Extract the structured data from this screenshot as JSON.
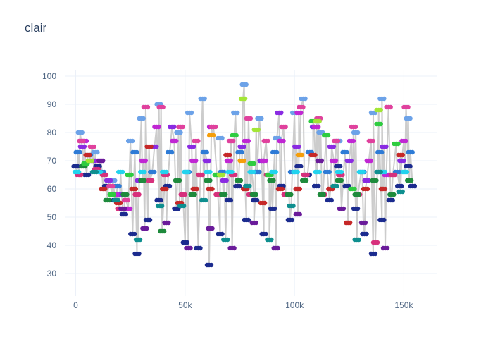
{
  "chart_data": {
    "type": "scatter",
    "title": "clair",
    "xlabel": "",
    "ylabel": "",
    "xlim": [
      -5000,
      165000
    ],
    "ylim": [
      22,
      102
    ],
    "grid": true,
    "legend": "none",
    "x_ticks": [
      0,
      50000,
      100000,
      150000
    ],
    "x_tick_labels": [
      "0",
      "50k",
      "100k",
      "150k"
    ],
    "y_ticks": [
      30,
      40,
      50,
      60,
      70,
      80,
      90,
      100
    ],
    "y_tick_labels": [
      "30",
      "40",
      "50",
      "60",
      "70",
      "80",
      "90",
      "100"
    ],
    "connector_color": "#cccccc",
    "marker_colors": [
      "#1b2b8e",
      "#2e7bd6",
      "#6ca2e8",
      "#8a2be2",
      "#c026d3",
      "#e0419d",
      "#d7307c",
      "#c62828",
      "#1e8a3c",
      "#2ecc40",
      "#a3e635",
      "#22d3ee",
      "#0e8f8f",
      "#6a1b9a",
      "#f59e0b"
    ],
    "series": [
      {
        "name": "",
        "color": "#1b2b8e",
        "points": [
          [
            0,
            68
          ],
          [
            5000,
            65
          ],
          [
            10000,
            68
          ],
          [
            14000,
            61
          ],
          [
            18000,
            56
          ],
          [
            22000,
            51
          ],
          [
            26000,
            44
          ],
          [
            28000,
            37
          ],
          [
            33000,
            49
          ],
          [
            38000,
            56
          ],
          [
            42000,
            61
          ],
          [
            46000,
            53
          ],
          [
            50000,
            41
          ],
          [
            56000,
            39
          ],
          [
            61000,
            33
          ],
          [
            66000,
            44
          ],
          [
            70000,
            56
          ],
          [
            74000,
            61
          ],
          [
            78000,
            49
          ],
          [
            82000,
            56
          ],
          [
            86000,
            44
          ],
          [
            90000,
            53
          ],
          [
            94000,
            61
          ],
          [
            98000,
            49
          ],
          [
            102000,
            68
          ],
          [
            106000,
            65
          ],
          [
            110000,
            61
          ],
          [
            116000,
            56
          ],
          [
            120000,
            68
          ],
          [
            124000,
            61
          ],
          [
            128000,
            53
          ],
          [
            132000,
            44
          ],
          [
            136000,
            37
          ],
          [
            140000,
            49
          ],
          [
            144000,
            56
          ],
          [
            148000,
            61
          ],
          [
            152000,
            68
          ],
          [
            154000,
            61
          ]
        ]
      },
      {
        "name": "",
        "color": "#2e7bd6",
        "points": [
          [
            1000,
            73
          ],
          [
            6000,
            72
          ],
          [
            12000,
            66
          ],
          [
            19000,
            61
          ],
          [
            27000,
            73
          ],
          [
            35000,
            66
          ],
          [
            43000,
            73
          ],
          [
            51000,
            66
          ],
          [
            59000,
            73
          ],
          [
            67000,
            66
          ],
          [
            75000,
            73
          ],
          [
            83000,
            66
          ],
          [
            91000,
            73
          ],
          [
            99000,
            66
          ],
          [
            107000,
            73
          ],
          [
            115000,
            66
          ],
          [
            123000,
            73
          ],
          [
            131000,
            66
          ],
          [
            139000,
            73
          ],
          [
            147000,
            66
          ],
          [
            153000,
            73
          ]
        ]
      },
      {
        "name": "",
        "color": "#6ca2e8",
        "points": [
          [
            2000,
            80
          ],
          [
            9000,
            73
          ],
          [
            17000,
            63
          ],
          [
            25000,
            77
          ],
          [
            30000,
            85
          ],
          [
            38000,
            90
          ],
          [
            47000,
            80
          ],
          [
            52000,
            87
          ],
          [
            58000,
            92
          ],
          [
            66000,
            78
          ],
          [
            73000,
            87
          ],
          [
            77000,
            97
          ],
          [
            84000,
            85
          ],
          [
            92000,
            78
          ],
          [
            100000,
            87
          ],
          [
            104000,
            92
          ],
          [
            112000,
            80
          ],
          [
            120000,
            77
          ],
          [
            128000,
            80
          ],
          [
            136000,
            87
          ],
          [
            140000,
            92
          ],
          [
            152000,
            85
          ]
        ]
      },
      {
        "name": "",
        "color": "#8a2be2",
        "points": [
          [
            3000,
            75
          ],
          [
            8000,
            70
          ],
          [
            15000,
            63
          ],
          [
            21000,
            58
          ],
          [
            29000,
            63
          ],
          [
            36000,
            75
          ],
          [
            44000,
            82
          ],
          [
            53000,
            75
          ],
          [
            60000,
            70
          ],
          [
            68000,
            63
          ],
          [
            76000,
            75
          ],
          [
            85000,
            70
          ],
          [
            93000,
            87
          ],
          [
            101000,
            75
          ],
          [
            109000,
            82
          ],
          [
            117000,
            75
          ],
          [
            125000,
            70
          ],
          [
            133000,
            63
          ],
          [
            141000,
            75
          ],
          [
            149000,
            70
          ]
        ]
      },
      {
        "name": "",
        "color": "#c026d3",
        "points": [
          [
            4000,
            77
          ],
          [
            11000,
            70
          ],
          [
            18000,
            58
          ],
          [
            24000,
            53
          ],
          [
            31000,
            70
          ],
          [
            37000,
            82
          ],
          [
            45000,
            77
          ],
          [
            54000,
            70
          ],
          [
            62000,
            82
          ],
          [
            70000,
            70
          ],
          [
            78000,
            77
          ],
          [
            86000,
            70
          ],
          [
            94000,
            77
          ],
          [
            102000,
            87
          ],
          [
            110000,
            82
          ],
          [
            118000,
            70
          ],
          [
            126000,
            77
          ],
          [
            134000,
            70
          ],
          [
            142000,
            65
          ],
          [
            150000,
            77
          ]
        ]
      },
      {
        "name": "",
        "color": "#e0419d",
        "points": [
          [
            2500,
            77
          ],
          [
            7500,
            75
          ],
          [
            16000,
            61
          ],
          [
            23000,
            56
          ],
          [
            32000,
            89
          ],
          [
            39000,
            89
          ],
          [
            48000,
            82
          ],
          [
            55000,
            77
          ],
          [
            63000,
            82
          ],
          [
            71000,
            77
          ],
          [
            79000,
            85
          ],
          [
            87000,
            77
          ],
          [
            95000,
            82
          ],
          [
            103000,
            89
          ],
          [
            111000,
            85
          ],
          [
            119000,
            77
          ],
          [
            127000,
            82
          ],
          [
            135000,
            77
          ],
          [
            143000,
            89
          ],
          [
            151000,
            89
          ]
        ]
      },
      {
        "name": "",
        "color": "#d7307c",
        "points": [
          [
            1500,
            65
          ],
          [
            9500,
            67
          ],
          [
            13000,
            65
          ],
          [
            20000,
            53
          ],
          [
            28000,
            58
          ],
          [
            34000,
            63
          ],
          [
            41000,
            65
          ],
          [
            49000,
            58
          ],
          [
            57000,
            65
          ],
          [
            65000,
            58
          ],
          [
            72000,
            65
          ],
          [
            80000,
            58
          ],
          [
            88000,
            65
          ],
          [
            96000,
            58
          ],
          [
            105000,
            65
          ],
          [
            113000,
            58
          ],
          [
            121000,
            65
          ],
          [
            129000,
            58
          ],
          [
            137000,
            41
          ],
          [
            145000,
            65
          ]
        ]
      },
      {
        "name": "",
        "color": "#c62828",
        "points": [
          [
            5500,
            72
          ],
          [
            12500,
            60
          ],
          [
            19500,
            55
          ],
          [
            26500,
            60
          ],
          [
            33500,
            75
          ],
          [
            40500,
            60
          ],
          [
            47500,
            55
          ],
          [
            54500,
            60
          ],
          [
            61500,
            60
          ],
          [
            69500,
            72
          ],
          [
            77500,
            60
          ],
          [
            85500,
            55
          ],
          [
            93500,
            60
          ],
          [
            101500,
            60
          ],
          [
            108500,
            72
          ],
          [
            116500,
            60
          ],
          [
            124500,
            48
          ],
          [
            132500,
            60
          ],
          [
            140500,
            60
          ],
          [
            148500,
            72
          ]
        ]
      },
      {
        "name": "",
        "color": "#1e8a3c",
        "points": [
          [
            3500,
            68
          ],
          [
            14500,
            56
          ],
          [
            22500,
            58
          ],
          [
            30500,
            63
          ],
          [
            39500,
            45
          ],
          [
            46500,
            63
          ],
          [
            53500,
            58
          ],
          [
            60500,
            63
          ],
          [
            67500,
            58
          ],
          [
            74500,
            63
          ],
          [
            81500,
            58
          ],
          [
            89500,
            63
          ],
          [
            97500,
            58
          ],
          [
            104500,
            63
          ],
          [
            112500,
            58
          ],
          [
            120500,
            63
          ],
          [
            128500,
            58
          ],
          [
            136500,
            63
          ],
          [
            144500,
            58
          ],
          [
            152500,
            63
          ]
        ]
      },
      {
        "name": "",
        "color": "#2ecc40",
        "points": [
          [
            4500,
            69
          ],
          [
            16500,
            58
          ],
          [
            24500,
            65
          ],
          [
            64500,
            65
          ],
          [
            72500,
            79
          ],
          [
            80500,
            69
          ],
          [
            88500,
            65
          ],
          [
            108500,
            84
          ],
          [
            114500,
            79
          ],
          [
            126500,
            60
          ],
          [
            138500,
            83
          ],
          [
            146500,
            76
          ]
        ]
      },
      {
        "name": "",
        "color": "#a3e635",
        "points": [
          [
            6500,
            70
          ],
          [
            66500,
            65
          ],
          [
            76500,
            92
          ],
          [
            82500,
            81
          ],
          [
            110500,
            84
          ],
          [
            138500,
            88
          ]
        ]
      },
      {
        "name": "",
        "color": "#22d3ee",
        "points": [
          [
            500,
            66
          ],
          [
            10500,
            66
          ],
          [
            20500,
            66
          ],
          [
            30500,
            66
          ],
          [
            40500,
            66
          ],
          [
            50500,
            66
          ],
          [
            60500,
            66
          ],
          [
            70500,
            66
          ],
          [
            80500,
            66
          ],
          [
            90500,
            66
          ],
          [
            100500,
            66
          ],
          [
            110500,
            66
          ],
          [
            120500,
            66
          ],
          [
            130500,
            66
          ],
          [
            140500,
            66
          ],
          [
            150500,
            66
          ]
        ]
      },
      {
        "name": "",
        "color": "#0e8f8f",
        "points": [
          [
            8500,
            66
          ],
          [
            18500,
            56
          ],
          [
            28500,
            42
          ],
          [
            38500,
            54
          ],
          [
            48500,
            54
          ],
          [
            58500,
            56
          ],
          [
            68500,
            42
          ],
          [
            78500,
            61
          ],
          [
            88500,
            42
          ],
          [
            98500,
            54
          ],
          [
            118500,
            61
          ],
          [
            128500,
            42
          ],
          [
            138500,
            66
          ],
          [
            148500,
            59
          ]
        ]
      },
      {
        "name": "",
        "color": "#6a1b9a",
        "points": [
          [
            11500,
            70
          ],
          [
            21500,
            53
          ],
          [
            31500,
            46
          ],
          [
            41500,
            48
          ],
          [
            51500,
            39
          ],
          [
            61500,
            46
          ],
          [
            71500,
            39
          ],
          [
            81500,
            48
          ],
          [
            91500,
            39
          ],
          [
            101500,
            51
          ],
          [
            111500,
            70
          ],
          [
            121500,
            53
          ],
          [
            131500,
            48
          ],
          [
            141500,
            39
          ]
        ]
      },
      {
        "name": "",
        "color": "#f59e0b",
        "points": [
          [
            62000,
            79
          ],
          [
            76000,
            70
          ],
          [
            102500,
            72
          ]
        ]
      }
    ]
  }
}
